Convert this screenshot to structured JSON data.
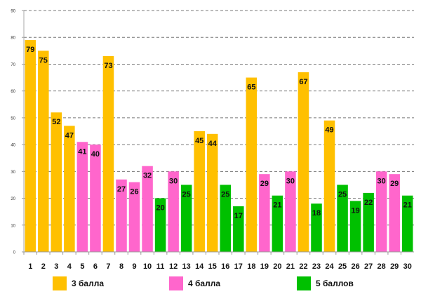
{
  "chart_data": {
    "type": "bar",
    "title": "",
    "xlabel": "",
    "ylabel": "",
    "ylim": [
      0,
      90
    ],
    "yticks": [
      0,
      10,
      20,
      30,
      40,
      50,
      60,
      70,
      80,
      90
    ],
    "grid": true,
    "legend_position": "bottom",
    "categories": [
      "1",
      "2",
      "3",
      "4",
      "5",
      "6",
      "7",
      "8",
      "9",
      "10",
      "11",
      "12",
      "13",
      "14",
      "15",
      "16",
      "17",
      "18",
      "19",
      "20",
      "21",
      "22",
      "23",
      "24",
      "25",
      "26",
      "27",
      "28",
      "29",
      "30"
    ],
    "values": [
      79,
      75,
      52,
      47,
      41,
      40,
      73,
      27,
      26,
      32,
      20,
      30,
      25,
      45,
      44,
      25,
      17,
      65,
      29,
      21,
      30,
      67,
      18,
      49,
      25,
      19,
      22,
      30,
      29,
      21
    ],
    "groups": [
      3,
      3,
      3,
      3,
      4,
      4,
      3,
      4,
      4,
      4,
      5,
      4,
      5,
      3,
      3,
      5,
      5,
      3,
      4,
      5,
      4,
      3,
      5,
      3,
      5,
      5,
      5,
      4,
      4,
      5
    ],
    "series": [
      {
        "name": "3 балла",
        "group": 3,
        "color": "#FFC000"
      },
      {
        "name": "4 балла",
        "group": 4,
        "color": "#FF66CC"
      },
      {
        "name": "5 баллов",
        "group": 5,
        "color": "#00C000"
      }
    ]
  }
}
